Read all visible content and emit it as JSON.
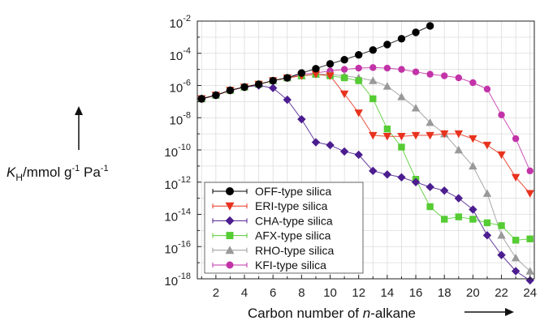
{
  "chart_data": {
    "type": "line",
    "xlabel_pre": "Carbon number of ",
    "xlabel_italic": "n",
    "xlabel_post": "-alkane",
    "ylabel_main": "K",
    "ylabel_sub": "H",
    "ylabel_unit": "/mmol g",
    "ylabel_sup1": "-1",
    "ylabel_unit2": " Pa",
    "ylabel_sup2": "-1",
    "xlim": [
      0.7,
      24.3
    ],
    "ylim_exp": [
      -18,
      -2
    ],
    "y_scale": "log",
    "grid": true,
    "legend_position": "bottom-left",
    "x_ticks": [
      "2",
      "4",
      "6",
      "8",
      "10",
      "12",
      "14",
      "16",
      "18",
      "20",
      "22",
      "24"
    ],
    "y_ticks": [
      {
        "base": "10",
        "exp": "-2"
      },
      {
        "base": "10",
        "exp": "-4"
      },
      {
        "base": "10",
        "exp": "-6"
      },
      {
        "base": "10",
        "exp": "-8"
      },
      {
        "base": "10",
        "exp": "-10"
      },
      {
        "base": "10",
        "exp": "-12"
      },
      {
        "base": "10",
        "exp": "-14"
      },
      {
        "base": "10",
        "exp": "-16"
      },
      {
        "base": "10",
        "exp": "-18"
      }
    ],
    "series": [
      {
        "name": "OFF-type silica",
        "color": "#000000",
        "marker": "circle",
        "x": [
          1,
          2,
          3,
          4,
          5,
          6,
          7,
          8,
          9,
          10,
          11,
          12,
          13,
          14,
          15,
          16,
          17
        ],
        "y": [
          1.5e-07,
          2.5e-07,
          5e-07,
          8e-07,
          1.2e-06,
          2e-06,
          3e-06,
          6e-06,
          1.1e-05,
          2.2e-05,
          4e-05,
          8e-05,
          0.00016,
          0.00035,
          0.0008,
          0.002,
          0.005
        ]
      },
      {
        "name": "ERI-type silica",
        "color": "#e8321e",
        "marker": "triangle-down",
        "x": [
          1,
          2,
          3,
          4,
          5,
          6,
          7,
          8,
          9,
          10,
          11,
          12,
          13,
          14,
          15,
          16,
          17,
          18,
          19,
          20,
          21,
          22,
          23,
          24
        ],
        "y": [
          1.5e-07,
          2.5e-07,
          5e-07,
          8e-07,
          1.2e-06,
          2e-06,
          3e-06,
          4e-06,
          5e-06,
          4e-06,
          3e-07,
          2e-08,
          8e-10,
          7e-10,
          7e-10,
          8e-10,
          8e-10,
          1e-09,
          1e-09,
          5e-10,
          2e-10,
          5e-11,
          2e-12,
          2e-13
        ]
      },
      {
        "name": "CHA-type silica",
        "color": "#4b1d8f",
        "marker": "diamond",
        "x": [
          1,
          2,
          3,
          4,
          5,
          6,
          7,
          8,
          9,
          10,
          11,
          12,
          13,
          14,
          15,
          16,
          17,
          18,
          19,
          20,
          21,
          22,
          23,
          24
        ],
        "y": [
          1.5e-07,
          2.5e-07,
          5e-07,
          8e-07,
          1e-06,
          7e-07,
          1.3e-07,
          8e-09,
          3e-10,
          2e-10,
          8e-11,
          5e-11,
          5e-12,
          3e-12,
          2e-12,
          1e-12,
          5e-13,
          3e-13,
          1e-13,
          2e-14,
          5e-16,
          3e-17,
          3e-18,
          8e-19
        ]
      },
      {
        "name": "AFX-type silica",
        "color": "#55cc33",
        "marker": "square",
        "x": [
          1,
          2,
          3,
          4,
          5,
          6,
          7,
          8,
          9,
          10,
          11,
          12,
          13,
          14,
          15,
          16,
          17,
          18,
          19,
          20,
          21,
          22,
          23,
          24
        ],
        "y": [
          1.5e-07,
          2.5e-07,
          5e-07,
          8e-07,
          1.2e-06,
          2e-06,
          3e-06,
          4e-06,
          5e-06,
          4e-06,
          3e-06,
          2e-06,
          1.5e-07,
          2e-09,
          1.5e-10,
          1.5e-12,
          3e-14,
          5e-15,
          7e-15,
          5e-15,
          3e-15,
          2e-15,
          2.5e-16,
          3e-16
        ]
      },
      {
        "name": "RHO-type silica",
        "color": "#999999",
        "marker": "triangle-up",
        "x": [
          1,
          2,
          3,
          4,
          5,
          6,
          7,
          8,
          9,
          10,
          11,
          12,
          13,
          14,
          15,
          16,
          17,
          18,
          19,
          20,
          21,
          22,
          23,
          24
        ],
        "y": [
          1.5e-07,
          2.5e-07,
          5e-07,
          8e-07,
          1.2e-06,
          2e-06,
          3e-06,
          4e-06,
          5e-06,
          5e-06,
          4e-06,
          3e-06,
          2e-06,
          9e-07,
          2e-07,
          4e-08,
          5e-09,
          1e-09,
          1e-10,
          1e-11,
          2e-13,
          5e-16,
          2e-17,
          3e-18
        ]
      },
      {
        "name": "KFI-type silica",
        "color": "#c233a8",
        "marker": "circle",
        "x": [
          1,
          2,
          3,
          4,
          5,
          6,
          7,
          8,
          9,
          10,
          11,
          12,
          13,
          14,
          15,
          16,
          17,
          18,
          19,
          20,
          21,
          22,
          23,
          24
        ],
        "y": [
          1.5e-07,
          2.5e-07,
          5e-07,
          8e-07,
          1.2e-06,
          2e-06,
          3e-06,
          5e-06,
          6e-06,
          8e-06,
          1e-05,
          1.2e-05,
          1.3e-05,
          1.2e-05,
          1e-05,
          7e-06,
          5e-06,
          4e-06,
          3e-06,
          1.5e-06,
          6e-07,
          1.5e-08,
          5e-10,
          5e-12
        ]
      }
    ]
  }
}
